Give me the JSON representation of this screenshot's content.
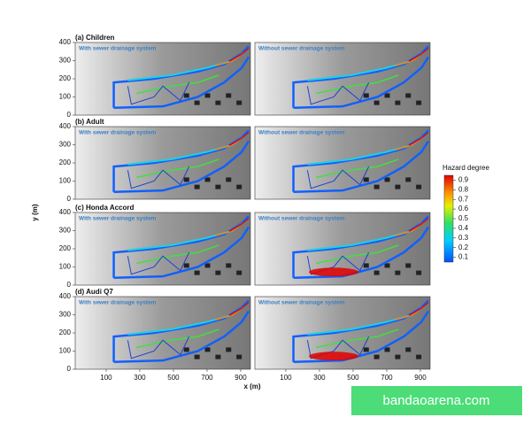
{
  "figure": {
    "rows": [
      {
        "title": "(a) Children",
        "panels": [
          "With sewer drainage system",
          "Without sewer drainage system"
        ]
      },
      {
        "title": "(b) Adult",
        "panels": [
          "With sewer drainage system",
          "Without sewer drainage system"
        ]
      },
      {
        "title": "(c) Honda Accord",
        "panels": [
          "With sewer drainage system",
          "Without sewer drainage system"
        ]
      },
      {
        "title": "(d) Audi Q7",
        "panels": [
          "With sewer drainage system",
          "Without sewer drainage system"
        ]
      }
    ],
    "ylabel": "y (m)",
    "xlabel": "x (m)",
    "ylim": [
      0,
      400
    ],
    "yticks": [
      0,
      100,
      200,
      300,
      400
    ],
    "xlim": [
      -84,
      958
    ],
    "xticks": [
      100,
      300,
      500,
      700,
      900
    ],
    "colorbar": {
      "title": "Hazard degree",
      "lim": [
        0.05,
        0.95
      ],
      "ticks": [
        0.1,
        0.2,
        0.3,
        0.4,
        0.5,
        0.6,
        0.7,
        0.8,
        0.9
      ]
    }
  },
  "watermark": "bandaoarena.com"
}
